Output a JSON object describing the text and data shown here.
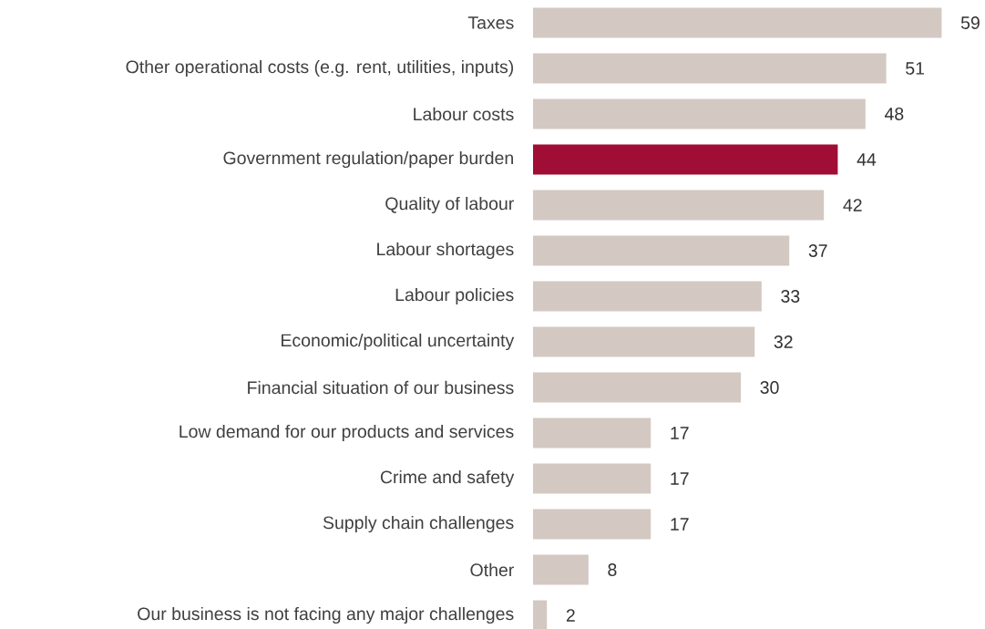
{
  "chart_data": {
    "type": "bar",
    "orientation": "horizontal",
    "data_labels": true,
    "categories": [
      "Taxes",
      "Other operational costs (e.g. rent, utilities, inputs)",
      "Labour costs",
      "Government regulation/paper burden",
      "Quality of labour",
      "Labour shortages",
      "Labour policies",
      "Economic/political uncertainty",
      "Financial situation of our business",
      "Low demand for our products and services",
      "Crime and safety",
      "Supply chain challenges",
      "Other",
      "Our business is not facing any major challenges"
    ],
    "values": [
      59,
      51,
      48,
      44,
      42,
      37,
      33,
      32,
      30,
      17,
      17,
      17,
      8,
      2
    ],
    "colors": [
      "#d3c8c2",
      "#d3c8c2",
      "#d3c8c2",
      "#a00d35",
      "#d3c8c2",
      "#d3c8c2",
      "#d3c8c2",
      "#d3c8c2",
      "#d3c8c2",
      "#d3c8c2",
      "#d3c8c2",
      "#d3c8c2",
      "#d3c8c2",
      "#d3c8c2"
    ]
  }
}
